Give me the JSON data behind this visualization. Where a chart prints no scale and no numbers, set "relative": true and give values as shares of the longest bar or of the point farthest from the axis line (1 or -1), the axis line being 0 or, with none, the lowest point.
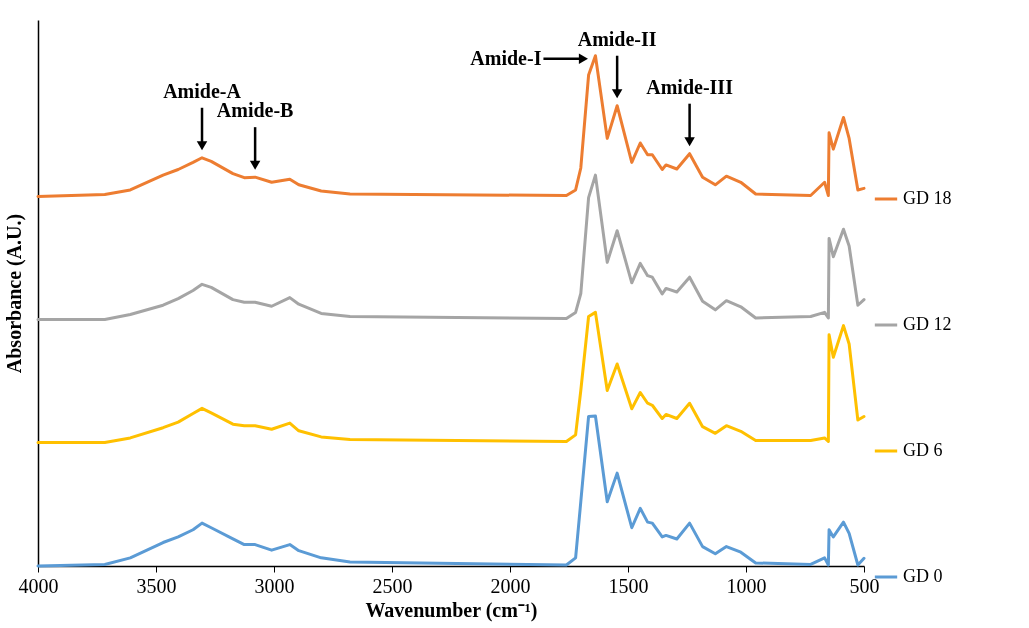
{
  "chart_data": {
    "type": "line",
    "relative": true,
    "xlabel": "Wavenumber (cm⁻¹)",
    "ylabel": "Absorbance (A.U.)",
    "x": [
      4000,
      3717,
      3609,
      3470,
      3406,
      3343,
      3305,
      3266,
      3174,
      3126,
      3080,
      3010,
      2933,
      2895,
      2800,
      2678,
      1761,
      1722,
      1700,
      1667,
      1638,
      1588,
      1546,
      1484,
      1448,
      1417,
      1397,
      1355,
      1339,
      1293,
      1239,
      1184,
      1130,
      1083,
      1022,
      959,
      726,
      667,
      651,
      648,
      630,
      587,
      563,
      526,
      500
    ],
    "xlim": [
      4000,
      500
    ],
    "xticks": [
      4000,
      3500,
      3000,
      2500,
      2000,
      1500,
      1000,
      500
    ],
    "series": [
      {
        "name": "GD 18",
        "color": "#ed7d31",
        "values": [
          0.724,
          0.728,
          0.737,
          0.766,
          0.777,
          0.791,
          0.8,
          0.793,
          0.769,
          0.761,
          0.762,
          0.752,
          0.758,
          0.747,
          0.735,
          0.729,
          0.726,
          0.737,
          0.78,
          0.962,
          1.0,
          0.838,
          0.902,
          0.791,
          0.829,
          0.806,
          0.806,
          0.777,
          0.786,
          0.778,
          0.808,
          0.762,
          0.747,
          0.764,
          0.752,
          0.729,
          0.726,
          0.752,
          0.726,
          0.849,
          0.817,
          0.879,
          0.838,
          0.737,
          0.74
        ]
      },
      {
        "name": "GD 12",
        "color": "#a5a5a5",
        "values": [
          0.483,
          0.483,
          0.493,
          0.511,
          0.524,
          0.54,
          0.552,
          0.546,
          0.522,
          0.517,
          0.517,
          0.509,
          0.526,
          0.513,
          0.495,
          0.489,
          0.485,
          0.497,
          0.534,
          0.722,
          0.766,
          0.595,
          0.657,
          0.555,
          0.593,
          0.569,
          0.566,
          0.533,
          0.544,
          0.537,
          0.566,
          0.519,
          0.502,
          0.52,
          0.508,
          0.486,
          0.489,
          0.497,
          0.486,
          0.642,
          0.606,
          0.66,
          0.627,
          0.511,
          0.522
        ]
      },
      {
        "name": "GD 6",
        "color": "#ffc000",
        "values": [
          0.242,
          0.242,
          0.251,
          0.271,
          0.282,
          0.299,
          0.309,
          0.3,
          0.278,
          0.275,
          0.275,
          0.268,
          0.28,
          0.265,
          0.253,
          0.248,
          0.244,
          0.257,
          0.344,
          0.489,
          0.497,
          0.344,
          0.396,
          0.308,
          0.34,
          0.319,
          0.315,
          0.289,
          0.297,
          0.289,
          0.319,
          0.273,
          0.26,
          0.275,
          0.264,
          0.246,
          0.246,
          0.251,
          0.244,
          0.453,
          0.409,
          0.471,
          0.435,
          0.286,
          0.293
        ]
      },
      {
        "name": "GD 0",
        "color": "#5b9bd5",
        "values": [
          0,
          0.003,
          0.016,
          0.046,
          0.057,
          0.071,
          0.084,
          0.075,
          0.053,
          0.042,
          0.042,
          0.031,
          0.042,
          0.03,
          0.016,
          0.008,
          0.002,
          0.016,
          0.126,
          0.293,
          0.294,
          0.126,
          0.182,
          0.075,
          0.113,
          0.086,
          0.084,
          0.057,
          0.06,
          0.053,
          0.084,
          0.038,
          0.024,
          0.038,
          0.027,
          0.006,
          0.003,
          0.016,
          0.002,
          0.071,
          0.057,
          0.086,
          0.064,
          0.002,
          0.015
        ]
      }
    ],
    "legend": "right",
    "annotations": [
      {
        "text": "Amide-A",
        "x": 3305,
        "y": 0.8
      },
      {
        "text": "Amide-B",
        "x": 3080,
        "y": 0.762
      },
      {
        "text": "Amide-I",
        "x": 1638,
        "y": 1.0
      },
      {
        "text": "Amide-II",
        "x": 1546,
        "y": 0.902
      },
      {
        "text": "Amide-III",
        "x": 1239,
        "y": 0.808
      }
    ]
  }
}
